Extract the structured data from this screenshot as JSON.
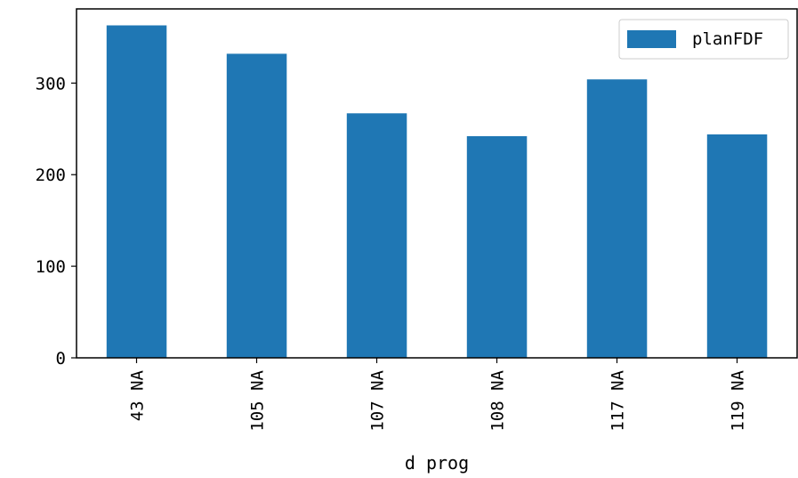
{
  "chart_data": {
    "type": "bar",
    "categories": [
      "43 NA",
      "105 NA",
      "107 NA",
      "108 NA",
      "117 NA",
      "119 NA"
    ],
    "series": [
      {
        "name": "planFDF",
        "values": [
          363,
          332,
          267,
          242,
          304,
          244
        ]
      }
    ],
    "title": "",
    "xlabel": "d prog",
    "ylabel": "",
    "ylim": [
      0,
      381
    ],
    "yticks": [
      0,
      100,
      200,
      300
    ],
    "grid": false,
    "legend_position": "top-right",
    "colors": {
      "bar": "#1f77b4"
    }
  }
}
